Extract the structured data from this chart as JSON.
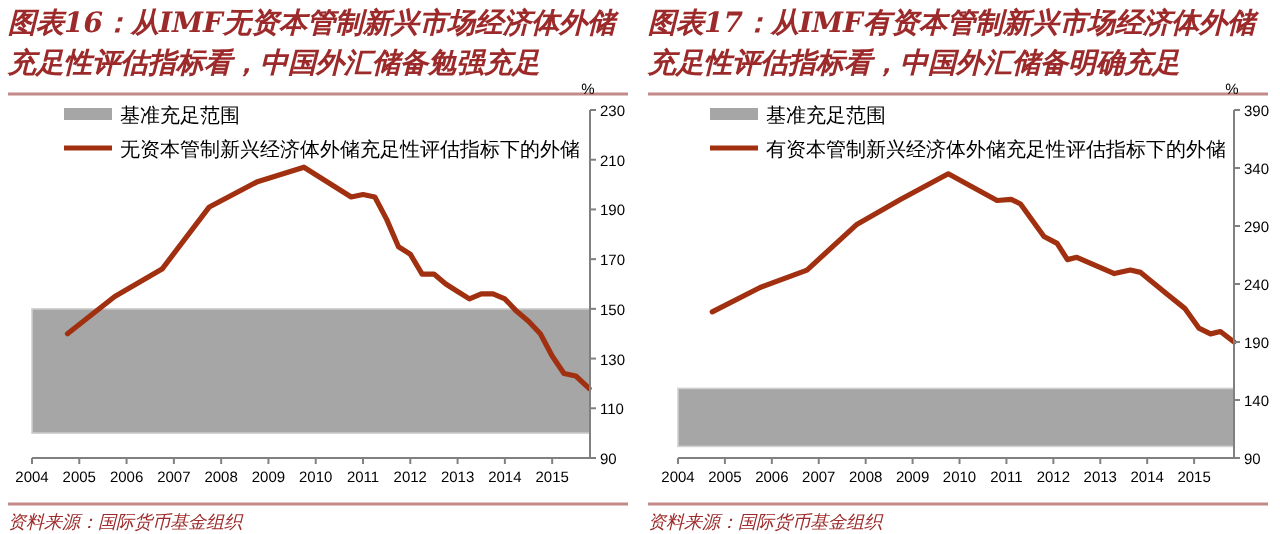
{
  "chart_data": [
    {
      "type": "line",
      "title": "图表16：从IMF无资本管制新兴市场经济体外储充足性评估指标看，中国外汇储备勉强充足",
      "ylabel": "%",
      "legend": "top left",
      "xlim": [
        2004,
        2015.8
      ],
      "xticks": [
        2004,
        2005,
        2006,
        2007,
        2008,
        2009,
        2010,
        2011,
        2012,
        2013,
        2014,
        2015
      ],
      "ylim": [
        90,
        230
      ],
      "yticks": [
        90,
        110,
        130,
        150,
        170,
        190,
        210,
        230
      ],
      "bands": [
        {
          "axis": "y",
          "from": 100,
          "to": 150,
          "label": "基准充足范围",
          "color": "#a6a6a6"
        }
      ],
      "series": [
        {
          "name": "无资本管制新兴经济体外储充足性评估指标下的外储",
          "color": "#a0300f",
          "x": [
            2004.75,
            2005.75,
            2006.75,
            2007.75,
            2008.75,
            2009.75,
            2010.75,
            2011,
            2011.25,
            2011.5,
            2011.75,
            2012,
            2012.25,
            2012.5,
            2012.75,
            2013,
            2013.25,
            2013.5,
            2013.75,
            2014,
            2014.25,
            2014.5,
            2014.75,
            2015,
            2015.25,
            2015.5,
            2015.78
          ],
          "values": [
            140,
            155,
            166,
            191,
            201,
            207,
            195,
            196,
            195,
            186,
            175,
            172,
            164,
            164,
            160,
            157,
            154,
            156,
            156,
            154,
            149,
            145,
            140,
            131,
            124,
            123,
            118
          ]
        }
      ],
      "annotations": [
        "资料来源：国际货币基金组织"
      ]
    },
    {
      "type": "line",
      "title": "图表17：从IMF有资本管制新兴市场经济体外储充足性评估指标看，中国外汇储备明确充足",
      "ylabel": "%",
      "legend": "top left",
      "xlim": [
        2004,
        2015.85
      ],
      "xticks": [
        2004,
        2005,
        2006,
        2007,
        2008,
        2009,
        2010,
        2011,
        2012,
        2013,
        2014,
        2015
      ],
      "ylim": [
        90,
        390
      ],
      "yticks": [
        90,
        140,
        190,
        240,
        290,
        340,
        390
      ],
      "bands": [
        {
          "axis": "y",
          "from": 100,
          "to": 150,
          "label": "基准充足范围",
          "color": "#a6a6a6"
        }
      ],
      "series": [
        {
          "name": "有资本管制新兴经济体外储充足性评估指标下的外储",
          "color": "#a0300f",
          "x": [
            2004.73,
            2005.75,
            2006.75,
            2007.8,
            2008.75,
            2009.76,
            2010.8,
            2011.1,
            2011.3,
            2011.8,
            2012.08,
            2012.3,
            2012.5,
            2013.3,
            2013.64,
            2013.86,
            2014.4,
            2014.8,
            2015.1,
            2015.35,
            2015.56,
            2015.85
          ],
          "values": [
            216,
            237,
            252,
            291,
            313,
            335,
            312,
            313,
            309,
            281,
            275,
            261,
            263,
            249,
            252,
            250,
            232,
            219,
            202,
            197,
            199,
            190
          ]
        }
      ],
      "annotations": [
        "资料来源：国际货币基金组织"
      ]
    }
  ]
}
